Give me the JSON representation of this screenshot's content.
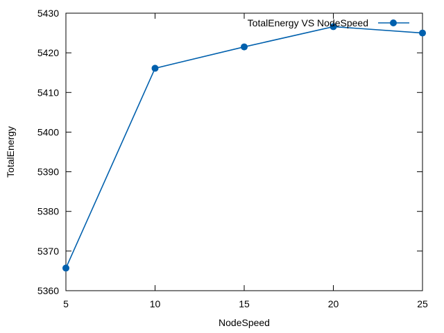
{
  "chart_data": {
    "type": "line",
    "title": "",
    "xlabel": "NodeSpeed",
    "ylabel": "TotalEnergy",
    "xlim": [
      5,
      25
    ],
    "ylim": [
      5360,
      5430
    ],
    "xticks": [
      5,
      10,
      15,
      20,
      25
    ],
    "yticks": [
      5360,
      5370,
      5380,
      5390,
      5400,
      5410,
      5420,
      5430
    ],
    "grid": false,
    "legend_position": "top-right",
    "series": [
      {
        "name": "TotalEnergy VS NodeSpeed",
        "color": "#0060ad",
        "marker": "circle",
        "x": [
          5,
          10,
          15,
          20,
          25
        ],
        "y": [
          5365.7,
          5416.1,
          5421.5,
          5426.6,
          5425.0
        ]
      }
    ]
  }
}
